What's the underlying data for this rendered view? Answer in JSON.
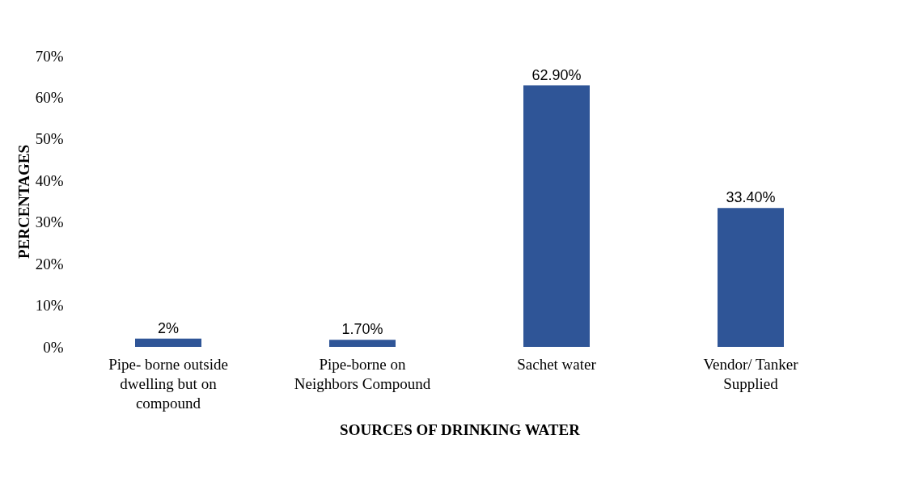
{
  "chart_data": {
    "type": "bar",
    "xlabel": "SOURCES OF DRINKING WATER",
    "ylabel": "PERCENTAGES",
    "categories": [
      "Pipe- borne outside dwelling but on compound",
      "Pipe-borne on Neighbors Compound",
      "Sachet water",
      "Vendor/ Tanker Supplied"
    ],
    "values": [
      2,
      1.7,
      62.9,
      33.4
    ],
    "value_labels": [
      "2%",
      "1.70%",
      "62.90%",
      "33.40%"
    ],
    "color": "#2f5597",
    "ylim": [
      0,
      70
    ],
    "yticks": [
      {
        "value": 0,
        "label": "0%"
      },
      {
        "value": 10,
        "label": "10%"
      },
      {
        "value": 20,
        "label": "20%"
      },
      {
        "value": 30,
        "label": "30%"
      },
      {
        "value": 40,
        "label": "40%"
      },
      {
        "value": 50,
        "label": "50%"
      },
      {
        "value": 60,
        "label": "60%"
      },
      {
        "value": 70,
        "label": "70%"
      }
    ],
    "grid": false
  }
}
